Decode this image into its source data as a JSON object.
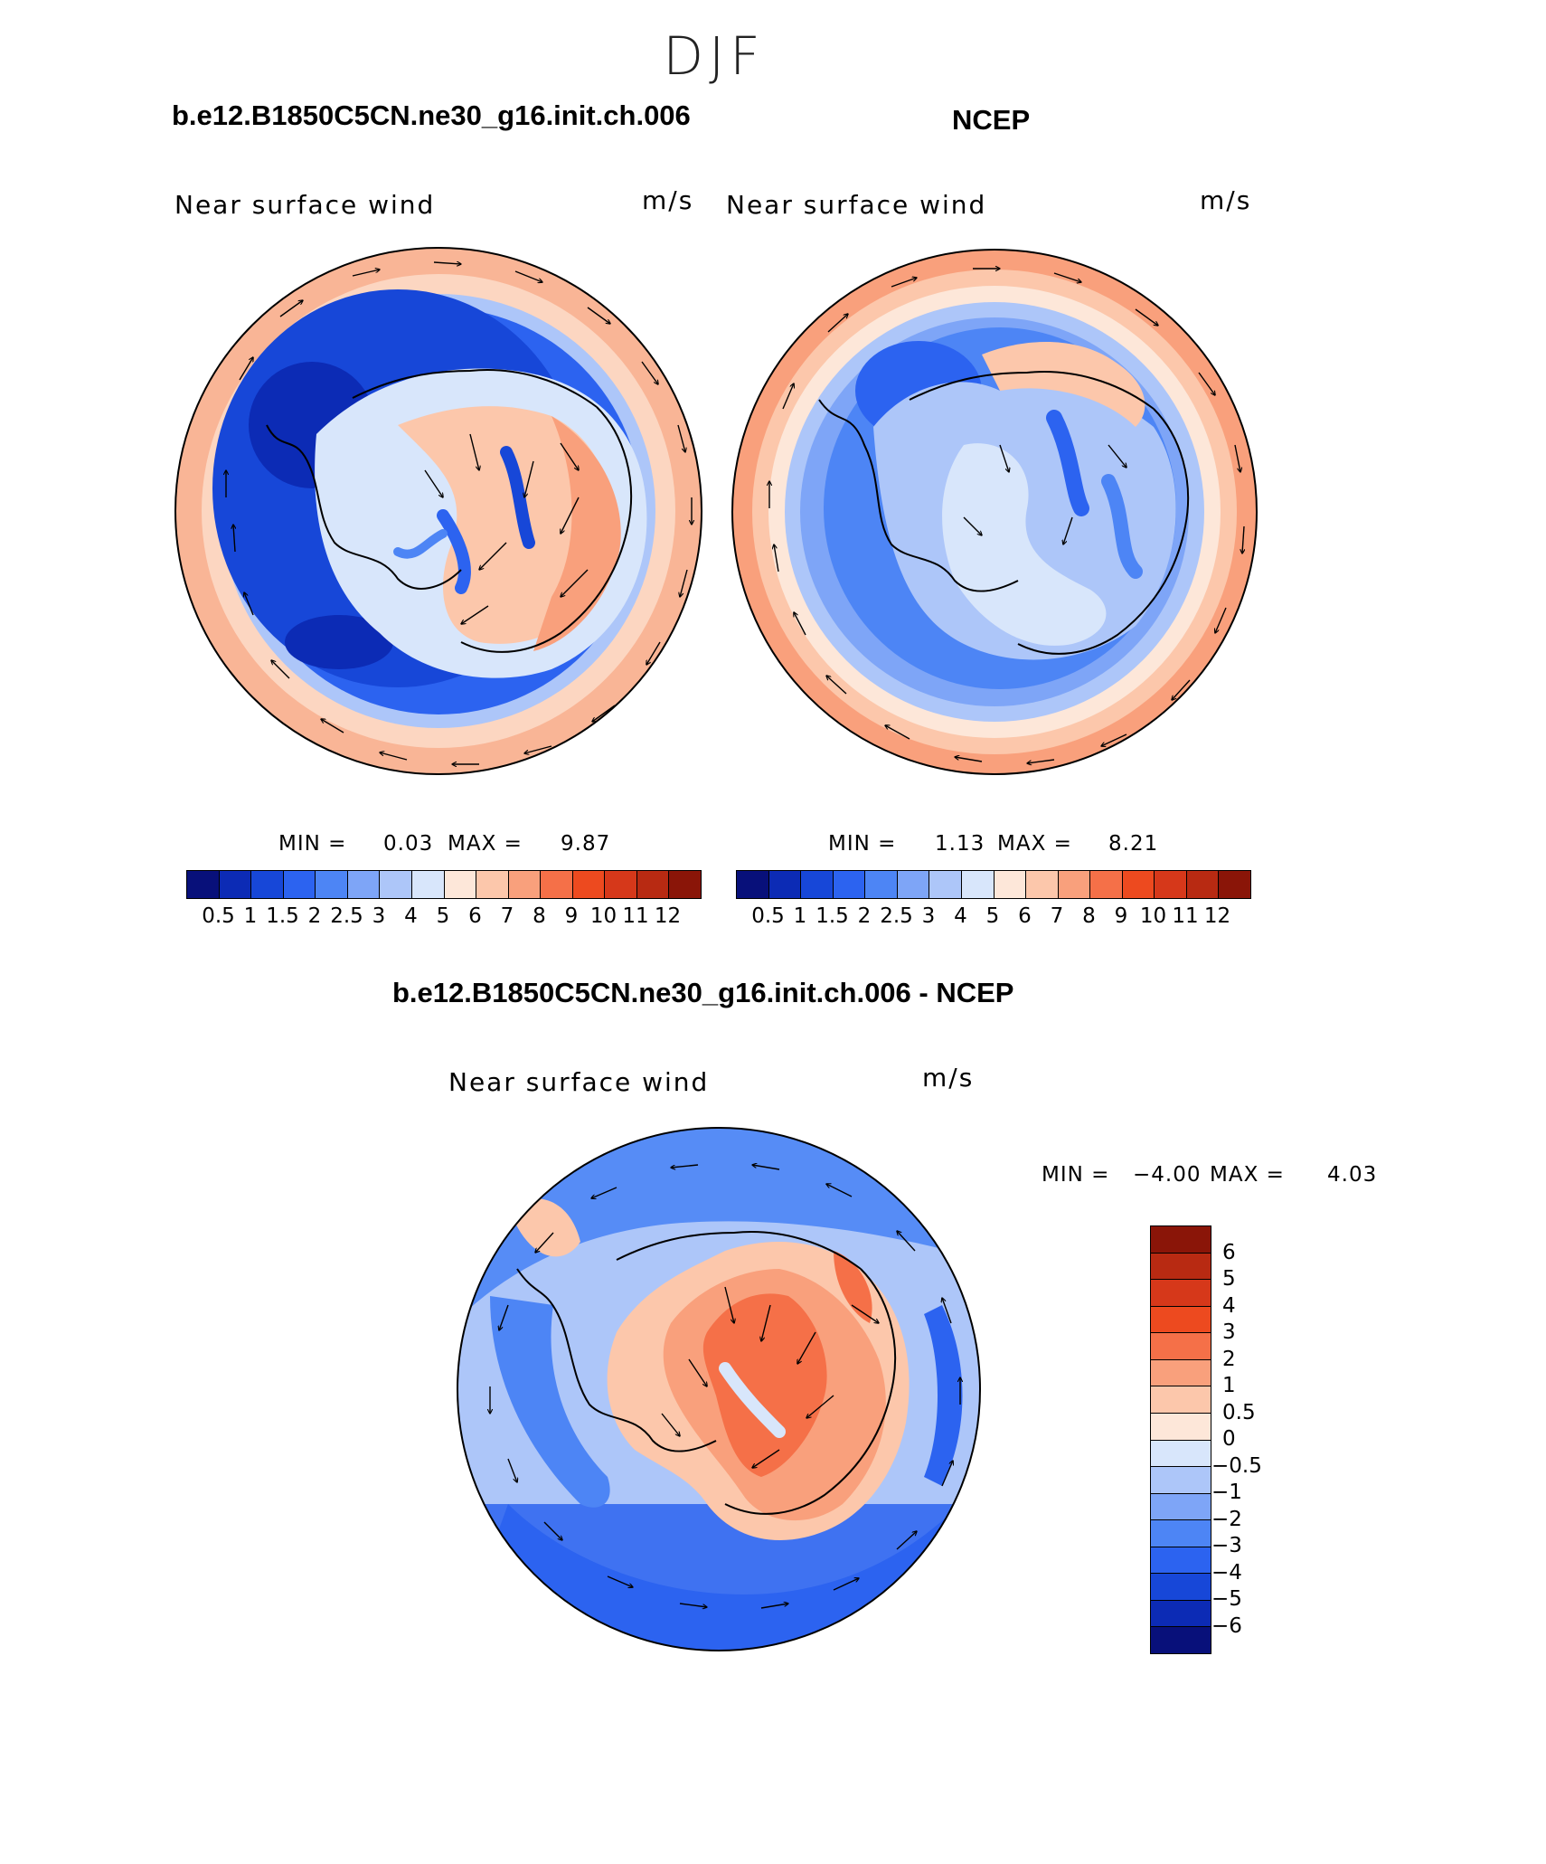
{
  "figure": {
    "season_title": "DJF",
    "panels": [
      {
        "case_title": "b.e12.B1850C5CN.ne30_g16.init.ch.006",
        "variable": "Near surface wind",
        "units": "m/s",
        "min_label": "MIN =",
        "min_value": "0.03",
        "max_label": "MAX =",
        "max_value": "9.87",
        "colorbar_labels": [
          "0.5",
          "1",
          "1.5",
          "2",
          "2.5",
          "3",
          "4",
          "5",
          "6",
          "7",
          "8",
          "9",
          "10",
          "11",
          "12"
        ]
      },
      {
        "case_title": "NCEP",
        "variable": "Near surface wind",
        "units": "m/s",
        "min_label": "MIN =",
        "min_value": "1.13",
        "max_label": "MAX =",
        "max_value": "8.21",
        "colorbar_labels": [
          "0.5",
          "1",
          "1.5",
          "2",
          "2.5",
          "3",
          "4",
          "5",
          "6",
          "7",
          "8",
          "9",
          "10",
          "11",
          "12"
        ]
      },
      {
        "case_title": "b.e12.B1850C5CN.ne30_g16.init.ch.006 - NCEP",
        "variable": "Near surface wind",
        "units": "m/s",
        "min_label": "MIN =",
        "min_value": "−4.00",
        "max_label": "MAX =",
        "max_value": "4.03",
        "colorbar_labels": [
          "6",
          "5",
          "4",
          "3",
          "2",
          "1",
          "0.5",
          "0",
          "−0.5",
          "−1",
          "−2",
          "−3",
          "−4",
          "−5",
          "−6"
        ]
      }
    ],
    "colors": {
      "abs_scale": [
        "#08107a",
        "#0c2bb5",
        "#1747d8",
        "#2c63f0",
        "#4d85f5",
        "#7ea5f7",
        "#adc6f9",
        "#d8e6fb",
        "#fde7d9",
        "#fcc7ab",
        "#f9a07c",
        "#f57048",
        "#ed4a1f",
        "#d6381a",
        "#b82a12",
        "#8a1508"
      ],
      "diff_scale": [
        "#8a1508",
        "#b82a12",
        "#d6381a",
        "#ed4a1f",
        "#f57048",
        "#f9a07c",
        "#fcc7ab",
        "#fde7d9",
        "#d8e6fb",
        "#adc6f9",
        "#7ea5f7",
        "#4d85f5",
        "#2c63f0",
        "#1747d8",
        "#0c2bb5",
        "#08107a"
      ]
    }
  }
}
